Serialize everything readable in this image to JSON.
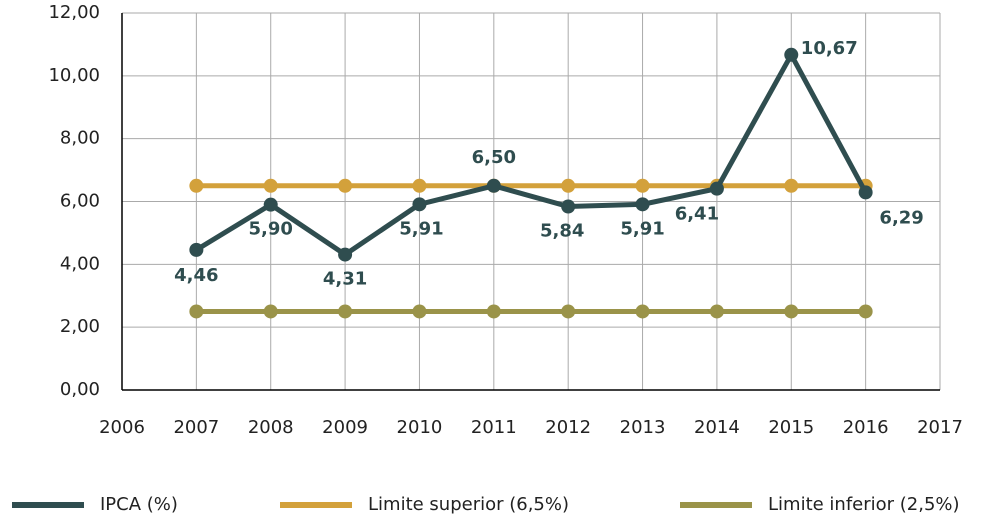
{
  "chart_data": {
    "type": "line",
    "x": [
      2007,
      2008,
      2009,
      2010,
      2011,
      2012,
      2013,
      2014,
      2015,
      2016
    ],
    "series": [
      {
        "name": "IPCA (%)",
        "color": "#2f4d4f",
        "values": [
          4.46,
          5.9,
          4.31,
          5.91,
          6.5,
          5.84,
          5.91,
          6.41,
          10.67,
          6.29
        ],
        "value_labels": [
          "4,46",
          "5,90",
          "4,31",
          "5,91",
          "6,50",
          "5,84",
          "5,91",
          "6,41",
          "10,67",
          "6,29"
        ]
      },
      {
        "name": "Limite superior (6,5%)",
        "color": "#d3a13b",
        "values": [
          6.5,
          6.5,
          6.5,
          6.5,
          6.5,
          6.5,
          6.5,
          6.5,
          6.5,
          6.5
        ]
      },
      {
        "name": "Limite inferior (2,5%)",
        "color": "#9a9349",
        "values": [
          2.5,
          2.5,
          2.5,
          2.5,
          2.5,
          2.5,
          2.5,
          2.5,
          2.5,
          2.5
        ]
      }
    ],
    "xlim": [
      2006,
      2017
    ],
    "xticks": [
      2006,
      2007,
      2008,
      2009,
      2010,
      2011,
      2012,
      2013,
      2014,
      2015,
      2016,
      2017
    ],
    "ylim": [
      0,
      12
    ],
    "yticks": [
      {
        "value": 0,
        "label": "0,00"
      },
      {
        "value": 2,
        "label": "2,00"
      },
      {
        "value": 4,
        "label": "4,00"
      },
      {
        "value": 6,
        "label": "6,00"
      },
      {
        "value": 8,
        "label": "8,00"
      },
      {
        "value": 10,
        "label": "10,00"
      },
      {
        "value": 12,
        "label": "12,00"
      }
    ],
    "grid": true,
    "legend": "bottom"
  }
}
